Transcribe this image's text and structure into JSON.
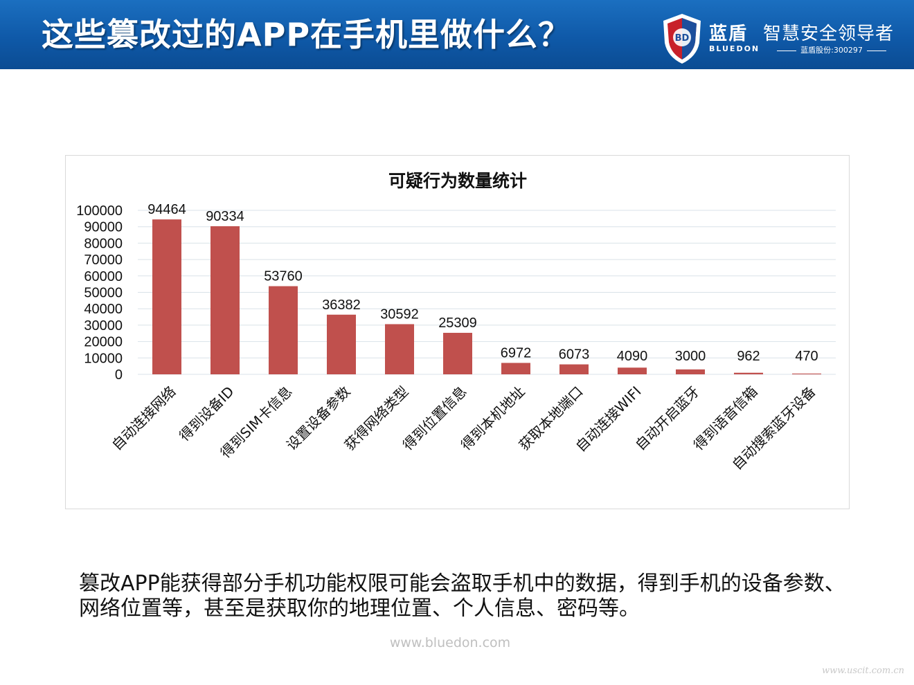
{
  "header": {
    "title": "这些篡改过的APP在手机里做什么？",
    "brand_mark": "BD",
    "brand_cn": "蓝盾",
    "brand_en": "BLUEDON",
    "slogan": "智慧安全领导者",
    "stock": "蓝盾股份:300297"
  },
  "chart_data": {
    "type": "bar",
    "title": "可疑行为数量统计",
    "categories": [
      "自动连接网络",
      "得到设备ID",
      "得到SIM卡信息",
      "设置设备参数",
      "获得网络类型",
      "得到位置信息",
      "得到本机地址",
      "获取本地端口",
      "自动连接WIFI",
      "自动开启蓝牙",
      "得到语音信箱",
      "自动搜索蓝牙设备"
    ],
    "values": [
      94464,
      90334,
      53760,
      36382,
      30592,
      25309,
      6972,
      6073,
      4090,
      3000,
      962,
      470
    ],
    "data_labels": [
      "94464",
      "90334",
      "53760",
      "36382",
      "30592",
      "25309",
      "6972",
      "6073",
      "4090",
      "3000",
      "962",
      "470"
    ],
    "ylim": [
      0,
      100000
    ],
    "yticks": [
      0,
      10000,
      20000,
      30000,
      40000,
      50000,
      60000,
      70000,
      80000,
      90000,
      100000
    ],
    "ytick_labels": [
      "0",
      "10000",
      "20000",
      "30000",
      "40000",
      "50000",
      "60000",
      "70000",
      "80000",
      "90000",
      "100000"
    ],
    "xlabel": "",
    "ylabel": "",
    "grid": true,
    "bar_color": "#c0504d",
    "grid_color": "#d9e2e8"
  },
  "description": "篡改APP能获得部分手机功能权限可能会盗取手机中的数据，得到手机的设备参数、网络位置等，甚至是获取你的地理位置、个人信息、密码等。",
  "footer": {
    "website": "www.bluedon.com",
    "watermark": "www.uscit.com.cn"
  },
  "colors": {
    "header_blue": "#0f59a8",
    "bar": "#c0504d"
  }
}
